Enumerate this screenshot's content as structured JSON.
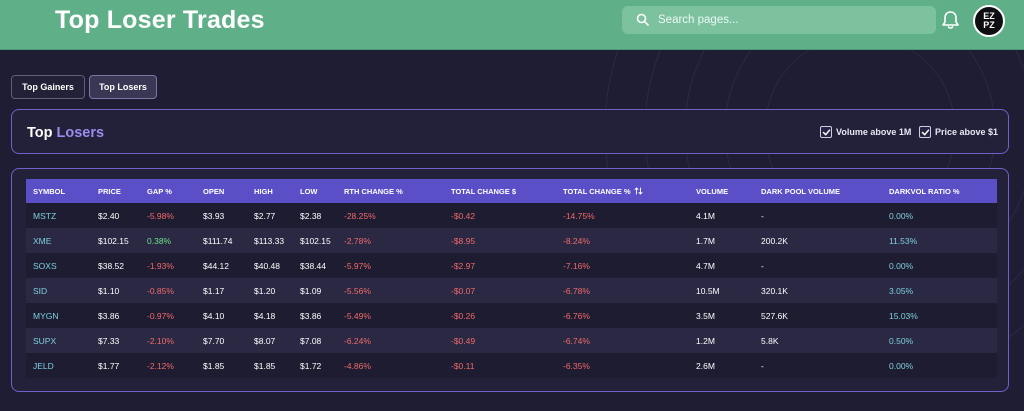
{
  "header": {
    "title": "Top Loser Trades",
    "search_placeholder": "Search pages...",
    "avatar_text": "EZ PZ"
  },
  "tabs": [
    {
      "label": "Top Gainers"
    },
    {
      "label": "Top Losers"
    }
  ],
  "panel": {
    "title_prefix": "Top",
    "title_accent": "Losers",
    "filters": [
      {
        "label": "Volume above 1M",
        "checked": true
      },
      {
        "label": "Price above $1",
        "checked": true
      }
    ]
  },
  "table": {
    "columns": [
      "SYMBOL",
      "PRICE",
      "GAP %",
      "OPEN",
      "HIGH",
      "LOW",
      "RTH CHANGE %",
      "TOTAL CHANGE $",
      "TOTAL CHANGE %",
      "VOLUME",
      "DARK POOL VOLUME",
      "DARKVOL RATIO %"
    ],
    "rows": [
      {
        "symbol": "MSTZ",
        "price": "$2.40",
        "gap": "-5.98%",
        "open": "$3.93",
        "high": "$2.77",
        "low": "$2.38",
        "rth": "-28.25%",
        "tot_d": "-$0.42",
        "tot_p": "-14.75%",
        "vol": "4.1M",
        "dpv": "-",
        "dvr": "0.00%"
      },
      {
        "symbol": "XME",
        "price": "$102.15",
        "gap": "0.38%",
        "open": "$111.74",
        "high": "$113.33",
        "low": "$102.15",
        "rth": "-2.78%",
        "tot_d": "-$8.95",
        "tot_p": "-8.24%",
        "vol": "1.7M",
        "dpv": "200.2K",
        "dvr": "11.53%"
      },
      {
        "symbol": "SOXS",
        "price": "$38.52",
        "gap": "-1.93%",
        "open": "$44.12",
        "high": "$40.48",
        "low": "$38.44",
        "rth": "-5.97%",
        "tot_d": "-$2.97",
        "tot_p": "-7.16%",
        "vol": "4.7M",
        "dpv": "-",
        "dvr": "0.00%"
      },
      {
        "symbol": "SID",
        "price": "$1.10",
        "gap": "-0.85%",
        "open": "$1.17",
        "high": "$1.20",
        "low": "$1.09",
        "rth": "-5.56%",
        "tot_d": "-$0.07",
        "tot_p": "-6.78%",
        "vol": "10.5M",
        "dpv": "320.1K",
        "dvr": "3.05%"
      },
      {
        "symbol": "MYGN",
        "price": "$3.86",
        "gap": "-0.97%",
        "open": "$4.10",
        "high": "$4.18",
        "low": "$3.86",
        "rth": "-5.49%",
        "tot_d": "-$0.26",
        "tot_p": "-6.76%",
        "vol": "3.5M",
        "dpv": "527.6K",
        "dvr": "15.03%"
      },
      {
        "symbol": "SUPX",
        "price": "$7.33",
        "gap": "-2.10%",
        "open": "$7.70",
        "high": "$8.07",
        "low": "$7.08",
        "rth": "-6.24%",
        "tot_d": "-$0.49",
        "tot_p": "-6.74%",
        "vol": "1.2M",
        "dpv": "5.8K",
        "dvr": "0.50%"
      },
      {
        "symbol": "JELD",
        "price": "$1.77",
        "gap": "-2.12%",
        "open": "$1.85",
        "high": "$1.85",
        "low": "$1.72",
        "rth": "-4.86%",
        "tot_d": "-$0.11",
        "tot_p": "-6.35%",
        "vol": "2.6M",
        "dpv": "-",
        "dvr": "0.00%"
      }
    ]
  },
  "colors": {
    "header_bg": "#5fb088",
    "page_bg": "#1f1d33",
    "accent": "#9b8cf0",
    "table_header": "#5a4fc6",
    "negative": "#f06a6a",
    "positive": "#6ee08a",
    "symbol": "#7fd0e0"
  },
  "icons": [
    "search-icon",
    "bell-icon",
    "check-icon",
    "sort-icon"
  ]
}
